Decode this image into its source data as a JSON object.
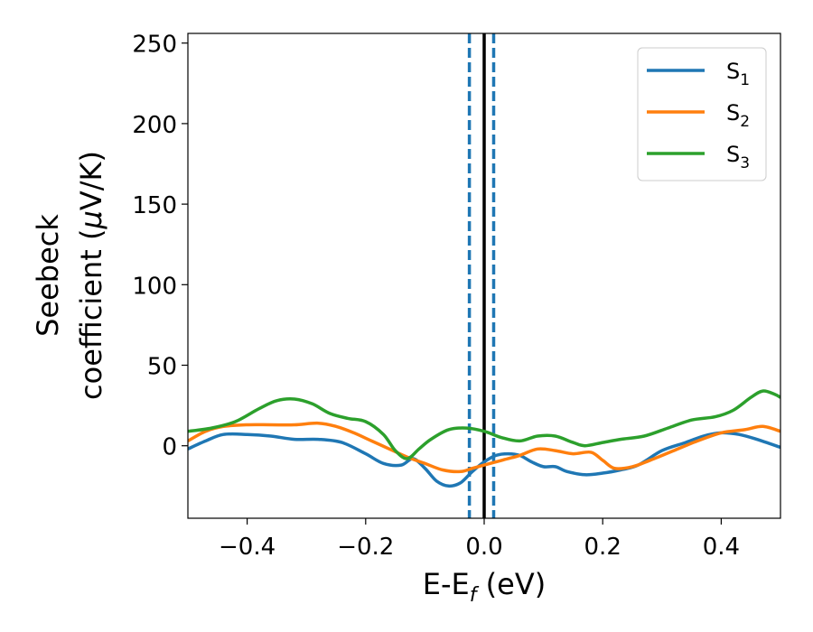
{
  "chart_data": {
    "type": "line",
    "xlabel": {
      "main": "E-E",
      "sub": "f",
      "suffix": " (eV)"
    },
    "ylabel": {
      "line1": "Seebeck",
      "line2_pre": "coefficient  (",
      "mu": "μ",
      "line2_post": "V/K)"
    },
    "xlim": [
      -0.5,
      0.5
    ],
    "ylim": [
      -45,
      256
    ],
    "xticks": [
      -0.4,
      -0.2,
      0.0,
      0.2,
      0.4
    ],
    "xtick_labels": [
      "−0.4",
      "−0.2",
      "0.0",
      "0.2",
      "0.4"
    ],
    "yticks": [
      0,
      50,
      100,
      150,
      200,
      250
    ],
    "ytick_labels": [
      "0",
      "50",
      "100",
      "150",
      "200",
      "250"
    ],
    "grid": false,
    "legend_position": "top-right",
    "vertical_lines": [
      {
        "x": -0.025,
        "style": "dashed",
        "color": "#1f77b4"
      },
      {
        "x": 0.0,
        "style": "solid",
        "color": "#000000"
      },
      {
        "x": 0.016,
        "style": "dashed",
        "color": "#1f77b4"
      }
    ],
    "series": [
      {
        "name": "S",
        "sub": "1",
        "color": "#1f77b4",
        "x": [
          -0.5,
          -0.47,
          -0.44,
          -0.4,
          -0.36,
          -0.32,
          -0.28,
          -0.24,
          -0.2,
          -0.17,
          -0.14,
          -0.12,
          -0.1,
          -0.08,
          -0.06,
          -0.04,
          -0.02,
          0.0,
          0.02,
          0.04,
          0.06,
          0.08,
          0.1,
          0.12,
          0.14,
          0.17,
          0.2,
          0.23,
          0.26,
          0.3,
          0.34,
          0.37,
          0.4,
          0.43,
          0.46,
          0.5
        ],
        "y": [
          -2,
          3,
          7,
          7,
          6,
          4,
          4,
          2,
          -5,
          -11,
          -12,
          -8,
          -14,
          -22,
          -25,
          -23,
          -16,
          -10,
          -6,
          -5,
          -6,
          -10,
          -13,
          -13,
          -16,
          -18,
          -17,
          -15,
          -12,
          -3,
          2,
          6,
          8,
          7,
          4,
          -1
        ]
      },
      {
        "name": "S",
        "sub": "2",
        "color": "#ff7f0e",
        "x": [
          -0.5,
          -0.47,
          -0.44,
          -0.4,
          -0.36,
          -0.32,
          -0.28,
          -0.25,
          -0.22,
          -0.19,
          -0.16,
          -0.13,
          -0.1,
          -0.07,
          -0.04,
          -0.02,
          0.0,
          0.03,
          0.06,
          0.09,
          0.12,
          0.15,
          0.18,
          0.2,
          0.22,
          0.25,
          0.28,
          0.32,
          0.36,
          0.4,
          0.44,
          0.47,
          0.5
        ],
        "y": [
          3,
          9,
          12,
          13,
          13,
          13,
          14,
          12,
          8,
          3,
          -2,
          -7,
          -11,
          -15,
          -16,
          -14,
          -12,
          -9,
          -6,
          -2,
          -3,
          -5,
          -4,
          -9,
          -14,
          -13,
          -9,
          -3,
          3,
          8,
          10,
          12,
          9
        ]
      },
      {
        "name": "S",
        "sub": "3",
        "color": "#2ca02c",
        "x": [
          -0.5,
          -0.46,
          -0.42,
          -0.38,
          -0.35,
          -0.32,
          -0.29,
          -0.26,
          -0.23,
          -0.2,
          -0.17,
          -0.15,
          -0.13,
          -0.11,
          -0.09,
          -0.06,
          -0.03,
          0.0,
          0.03,
          0.06,
          0.09,
          0.12,
          0.15,
          0.17,
          0.2,
          0.23,
          0.27,
          0.31,
          0.35,
          0.39,
          0.42,
          0.45,
          0.47,
          0.49,
          0.5
        ],
        "y": [
          9,
          11,
          15,
          23,
          28,
          29,
          26,
          20,
          17,
          15,
          7,
          -3,
          -8,
          -2,
          4,
          10,
          11,
          9,
          5,
          3,
          6,
          6,
          2,
          0,
          2,
          4,
          6,
          11,
          16,
          18,
          22,
          30,
          34,
          32,
          30
        ]
      }
    ]
  }
}
